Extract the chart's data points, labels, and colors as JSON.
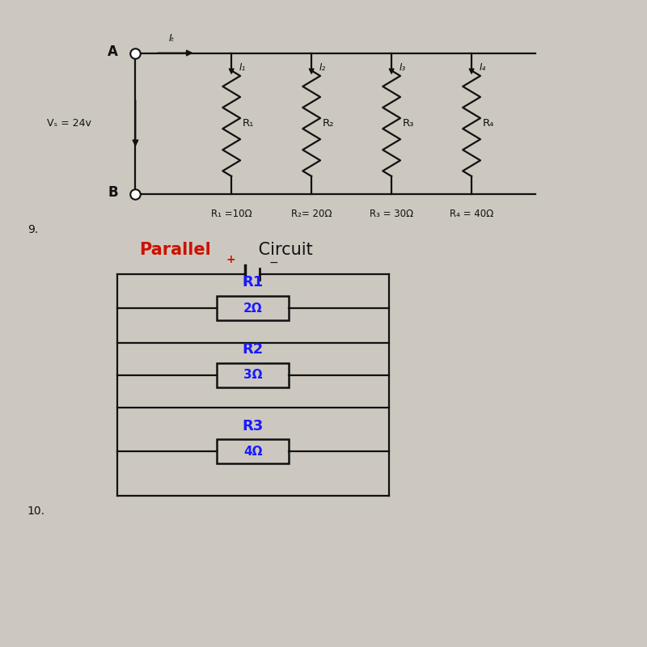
{
  "bg_color": "#ccc8c0",
  "number_9": "9.",
  "number_10": "10.",
  "vs_label": "Vₛ = 24v",
  "node_a": "A",
  "node_b": "B",
  "IT_label": "Iₜ",
  "I1_label": "I₁",
  "I2_label": "I₂",
  "I3_label": "I₃",
  "I4_label": "I₄",
  "R1_label_top": "R₁",
  "R2_label_top": "R₂",
  "R3_label_top": "R₃",
  "R4_label_top": "R₄",
  "R1_bottom": "R₁ =10Ω",
  "R2_bottom": "R₂= 20Ω",
  "R3_bottom": "R₃ = 30Ω",
  "R4_bottom": "R₄ = 40Ω",
  "parallel_R1_label": "R1",
  "parallel_R1_val": "2Ω",
  "parallel_R2_label": "R2",
  "parallel_R2_val": "3Ω",
  "parallel_R3_label": "R3",
  "parallel_R3_val": "4Ω",
  "blue": "#1a1aff",
  "black": "#111111",
  "red": "#cc1100",
  "title_parallel": "Parallel",
  "title_circuit": " Circuit"
}
